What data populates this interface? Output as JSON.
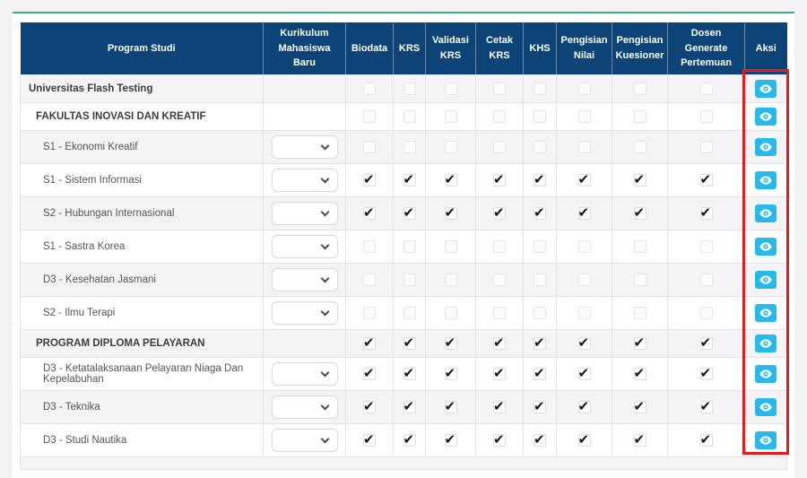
{
  "page": {
    "background_color": "#f2f2f4",
    "card_accent_color": "#36b37e"
  },
  "colors": {
    "header_bg": "#0c4478",
    "header_text": "#ffffff",
    "stripe_row": "#f4f4f6",
    "eye_button_bg": "#28b9ec",
    "checkmark": "#17181a",
    "annotation_red": "#e81a1a"
  },
  "table": {
    "columns": [
      {
        "key": "program",
        "label": "Program Studi"
      },
      {
        "key": "kurikulum",
        "label": "Kurikulum Mahasiswa Baru"
      },
      {
        "key": "biodata",
        "label": "Biodata"
      },
      {
        "key": "krs",
        "label": "KRS"
      },
      {
        "key": "validasi_krs",
        "label": "Validasi KRS"
      },
      {
        "key": "cetak_krs",
        "label": "Cetak KRS"
      },
      {
        "key": "khs",
        "label": "KHS"
      },
      {
        "key": "pengisian_nilai",
        "label": "Pengisian Nilai"
      },
      {
        "key": "pengisian_kuesioner",
        "label": "Pengisian Kuesioner"
      },
      {
        "key": "dosen_generate_pertemuan",
        "label": "Dosen Generate Pertemuan"
      },
      {
        "key": "aksi",
        "label": "Aksi"
      }
    ],
    "check_column_keys": [
      "biodata",
      "krs",
      "validasi_krs",
      "cetak_krs",
      "khs",
      "pengisian_nilai",
      "pengisian_kuesioner",
      "dosen_generate_pertemuan"
    ],
    "kurikulum_dropdown": {
      "selected_value": ""
    },
    "rows": [
      {
        "program": "Universitas Flash Testing",
        "level": 0,
        "bold": true,
        "has_dropdown": false,
        "features_checked": false
      },
      {
        "program": "FAKULTAS INOVASI DAN KREATIF",
        "level": 1,
        "bold": true,
        "has_dropdown": false,
        "features_checked": false
      },
      {
        "program": "S1 - Ekonomi Kreatif",
        "level": 2,
        "bold": false,
        "has_dropdown": true,
        "features_checked": false
      },
      {
        "program": "S1 - Sistem Informasi",
        "level": 2,
        "bold": false,
        "has_dropdown": true,
        "features_checked": true
      },
      {
        "program": "S2 - Hubungan Internasional",
        "level": 2,
        "bold": false,
        "has_dropdown": true,
        "features_checked": true
      },
      {
        "program": "S1 - Sastra Korea",
        "level": 2,
        "bold": false,
        "has_dropdown": true,
        "features_checked": false
      },
      {
        "program": "D3 - Kesehatan Jasmani",
        "level": 2,
        "bold": false,
        "has_dropdown": true,
        "features_checked": false
      },
      {
        "program": "S2 - Ilmu Terapi",
        "level": 2,
        "bold": false,
        "has_dropdown": true,
        "features_checked": false
      },
      {
        "program": "PROGRAM DIPLOMA PELAYARAN",
        "level": 1,
        "bold": true,
        "has_dropdown": false,
        "features_checked": true
      },
      {
        "program": "D3 - Ketatalaksanaan Pelayaran Niaga Dan Kepelabuhan",
        "level": 2,
        "bold": false,
        "has_dropdown": true,
        "features_checked": true
      },
      {
        "program": "D3 - Teknika",
        "level": 2,
        "bold": false,
        "has_dropdown": true,
        "features_checked": true
      },
      {
        "program": "D3 - Studi Nautika",
        "level": 2,
        "bold": false,
        "has_dropdown": true,
        "features_checked": true
      }
    ]
  },
  "annotation": {
    "shape": "rectangle",
    "color": "#e81a1a",
    "highlighted_column": "Aksi"
  }
}
